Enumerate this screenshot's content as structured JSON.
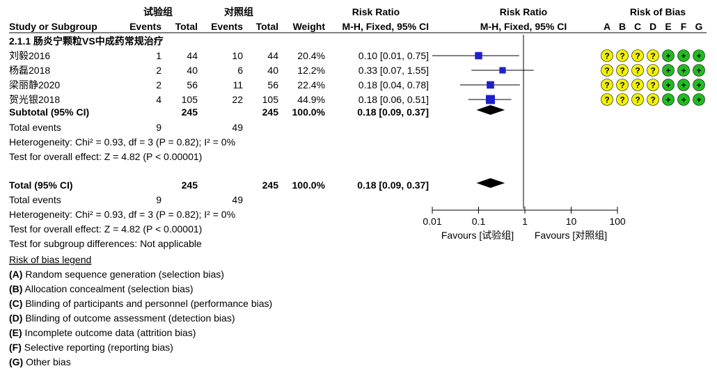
{
  "header": {
    "group1": "试验组",
    "group2": "对照组",
    "study_or_subgroup": "Study or Subgroup",
    "events": "Events",
    "total": "Total",
    "weight": "Weight",
    "risk_ratio": "Risk Ratio",
    "method": "M-H, Fixed, 95% CI",
    "risk_of_bias": "Risk of Bias",
    "bias_letters": [
      "A",
      "B",
      "C",
      "D",
      "E",
      "F",
      "G"
    ]
  },
  "subgroup": {
    "title": "2.1.1 肠炎宁颗粒VS中成药常规治疗",
    "subtotal_label": "Subtotal (95% CI)",
    "subtotal_e_total": "245",
    "subtotal_c_total": "245",
    "subtotal_weight": "100.0%",
    "subtotal_ci": "0.18 [0.09, 0.37]",
    "total_events_label": "Total events",
    "total_events_e": "9",
    "total_events_c": "49",
    "heterogeneity": "Heterogeneity: Chi² = 0.93, df = 3 (P = 0.82); I² = 0%",
    "overall_effect": "Test for overall effect: Z = 4.82 (P < 0.00001)"
  },
  "total": {
    "label": "Total (95% CI)",
    "e_total": "245",
    "c_total": "245",
    "weight": "100.0%",
    "ci": "0.18 [0.09, 0.37]",
    "total_events_label": "Total events",
    "total_events_e": "9",
    "total_events_c": "49",
    "heterogeneity": "Heterogeneity: Chi² = 0.93, df = 3 (P = 0.82); I² = 0%",
    "overall_effect": "Test for overall effect: Z = 4.82 (P < 0.00001)",
    "subgroup_diff": "Test for subgroup differences: Not applicable"
  },
  "legend": {
    "title": "Risk of bias legend",
    "items": [
      {
        "letter": "(A)",
        "text": " Random sequence generation (selection bias)"
      },
      {
        "letter": "(B)",
        "text": " Allocation concealment (selection bias)"
      },
      {
        "letter": "(C)",
        "text": " Blinding of participants and personnel (performance bias)"
      },
      {
        "letter": "(D)",
        "text": " Blinding of outcome assessment (detection bias)"
      },
      {
        "letter": "(E)",
        "text": " Incomplete outcome data (attrition bias)"
      },
      {
        "letter": "(F)",
        "text": " Selective reporting (reporting bias)"
      },
      {
        "letter": "(G)",
        "text": " Other bias"
      }
    ]
  },
  "axis": {
    "ticks": [
      0.01,
      0.1,
      1,
      10,
      100
    ],
    "tick_labels": [
      "0.01",
      "0.1",
      "1",
      "10",
      "100"
    ],
    "favours_left": "Favours [试验组]",
    "favours_right": "Favours [对照组]"
  },
  "bias_colors": {
    "unclear": "#f2f200",
    "low": "#22bb22"
  },
  "bias_symbols": {
    "unclear": "?",
    "low": "+"
  },
  "colors": {
    "point": "#1f1fcc",
    "diamond": "#000000"
  },
  "chart_data": {
    "type": "forest",
    "x_scale": "log",
    "xlim": [
      0.01,
      100
    ],
    "null_value": 1,
    "studies": [
      {
        "name": "刘毅2016",
        "e_events": "1",
        "e_total": "44",
        "c_events": "10",
        "c_total": "44",
        "weight": "20.4%",
        "ci_text": "0.10 [0.01, 0.75]",
        "rr": 0.1,
        "lo": 0.01,
        "hi": 0.75,
        "bias": [
          "unclear",
          "unclear",
          "unclear",
          "unclear",
          "low",
          "low",
          "low"
        ]
      },
      {
        "name": "杨磊2018",
        "e_events": "2",
        "e_total": "40",
        "c_events": "6",
        "c_total": "40",
        "weight": "12.2%",
        "ci_text": "0.33 [0.07, 1.55]",
        "rr": 0.33,
        "lo": 0.07,
        "hi": 1.55,
        "bias": [
          "unclear",
          "unclear",
          "unclear",
          "unclear",
          "low",
          "low",
          "low"
        ]
      },
      {
        "name": "梁丽静2020",
        "e_events": "2",
        "e_total": "56",
        "c_events": "11",
        "c_total": "56",
        "weight": "22.4%",
        "ci_text": "0.18 [0.04, 0.78]",
        "rr": 0.18,
        "lo": 0.04,
        "hi": 0.78,
        "bias": [
          "unclear",
          "unclear",
          "unclear",
          "unclear",
          "low",
          "low",
          "low"
        ]
      },
      {
        "name": "贺光银2018",
        "e_events": "4",
        "e_total": "105",
        "c_events": "22",
        "c_total": "105",
        "weight": "44.9%",
        "ci_text": "0.18 [0.06, 0.51]",
        "rr": 0.18,
        "lo": 0.06,
        "hi": 0.51,
        "bias": [
          "unclear",
          "unclear",
          "unclear",
          "unclear",
          "low",
          "low",
          "low"
        ]
      }
    ],
    "subtotal": {
      "rr": 0.18,
      "lo": 0.09,
      "hi": 0.37
    },
    "total": {
      "rr": 0.18,
      "lo": 0.09,
      "hi": 0.37
    }
  }
}
